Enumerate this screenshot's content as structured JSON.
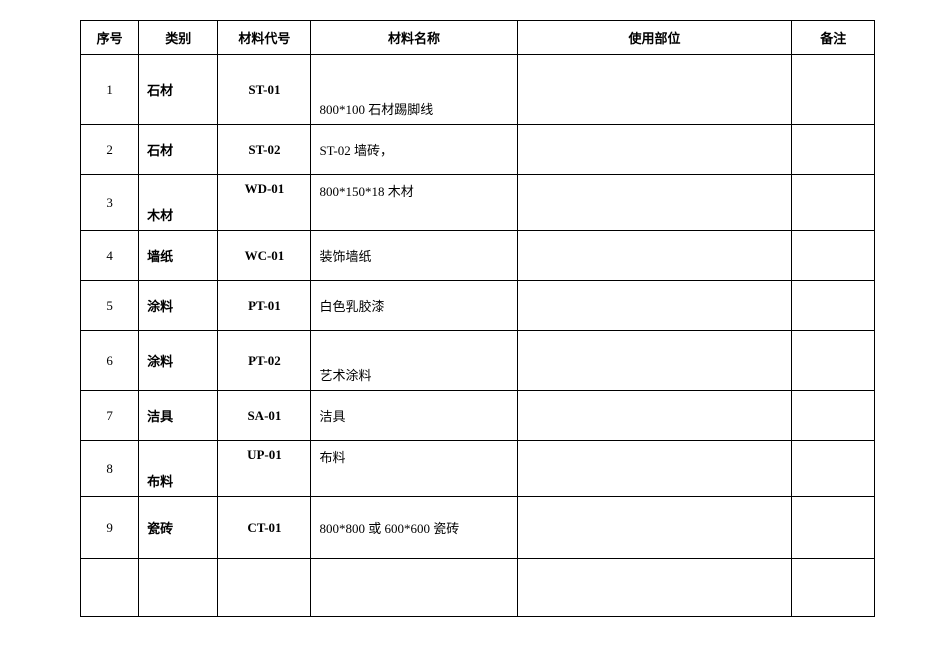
{
  "table": {
    "columns": {
      "seq": "序号",
      "category": "类别",
      "code": "材料代号",
      "name": "材料名称",
      "usage": "使用部位",
      "remark": "备注"
    },
    "rows": [
      {
        "seq": "1",
        "category": "石材",
        "code": "ST-01",
        "name": "800*100 石材踢脚线",
        "usage": "",
        "remark": ""
      },
      {
        "seq": "2",
        "category": "石材",
        "code": "ST-02",
        "name": "ST-02 墙砖，",
        "usage": "",
        "remark": ""
      },
      {
        "seq": "3",
        "category": "木材",
        "code": "WD-01",
        "name": "800*150*18 木材",
        "usage": "",
        "remark": ""
      },
      {
        "seq": "4",
        "category": "墙纸",
        "code": "WC-01",
        "name": "装饰墙纸",
        "usage": "",
        "remark": ""
      },
      {
        "seq": "5",
        "category": "涂料",
        "code": "PT-01",
        "name": "白色乳胶漆",
        "usage": "",
        "remark": ""
      },
      {
        "seq": "6",
        "category": "涂料",
        "code": "PT-02",
        "name": "艺术涂料",
        "usage": "",
        "remark": ""
      },
      {
        "seq": "7",
        "category": "洁具",
        "code": "SA-01",
        "name": "洁具",
        "usage": "",
        "remark": ""
      },
      {
        "seq": "8",
        "category": "布料",
        "code": "UP-01",
        "name": "布料",
        "usage": "",
        "remark": ""
      },
      {
        "seq": "9",
        "category": "瓷砖",
        "code": "CT-01",
        "name": "800*800 或 600*600 瓷砖",
        "usage": "",
        "remark": ""
      }
    ]
  },
  "styling": {
    "border_color": "#000000",
    "background_color": "#ffffff",
    "font_family": "SimSun",
    "header_fontsize": 13,
    "cell_fontsize": 13
  }
}
